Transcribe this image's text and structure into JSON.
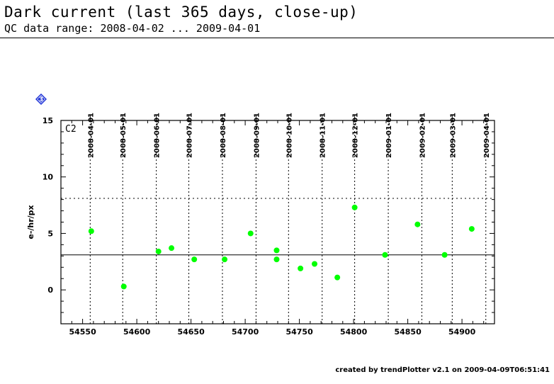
{
  "header": {
    "title": "Dark current (last 365 days, close-up)",
    "subtitle": "QC data range: 2008-04-02 ... 2009-04-01"
  },
  "footer": {
    "credit": "created by trendPlotter v2.1 on 2009-04-09T06:51:41"
  },
  "badge": {
    "label": "3",
    "color": "#1a2fd6"
  },
  "chart_data": {
    "type": "scatter",
    "title": "Dark current (last 365 days, close-up)",
    "subtitle": "QC data range: 2008-04-02 ... 2009-04-01",
    "panel_label": "C2",
    "ylabel": "e-/hr/px",
    "xlabel": "",
    "xlim": [
      54530,
      54930
    ],
    "ylim": [
      -3,
      15
    ],
    "x_ticks": [
      54550,
      54600,
      54650,
      54700,
      54750,
      54800,
      54850,
      54900
    ],
    "y_ticks": [
      0,
      5,
      10,
      15
    ],
    "date_ticks": [
      {
        "x": 54557,
        "label": "2008-04-01"
      },
      {
        "x": 54587,
        "label": "2008-05-01"
      },
      {
        "x": 54618,
        "label": "2008-06-01"
      },
      {
        "x": 54648,
        "label": "2008-07-01"
      },
      {
        "x": 54679,
        "label": "2008-08-01"
      },
      {
        "x": 54710,
        "label": "2008-09-01"
      },
      {
        "x": 54740,
        "label": "2008-10-01"
      },
      {
        "x": 54771,
        "label": "2008-11-01"
      },
      {
        "x": 54801,
        "label": "2008-12-01"
      },
      {
        "x": 54832,
        "label": "2009-01-01"
      },
      {
        "x": 54863,
        "label": "2009-02-01"
      },
      {
        "x": 54891,
        "label": "2009-03-01"
      },
      {
        "x": 54922,
        "label": "2009-04-01"
      }
    ],
    "reference_line": {
      "y": 3.1,
      "style": "solid"
    },
    "threshold_line": {
      "y": 8.1,
      "style": "dotted"
    },
    "marker_color": "#00ff00",
    "series": [
      {
        "points": [
          {
            "x": 54558,
            "y": 5.2
          },
          {
            "x": 54588,
            "y": 0.3
          },
          {
            "x": 54620,
            "y": 3.4
          },
          {
            "x": 54632,
            "y": 3.7
          },
          {
            "x": 54653,
            "y": 2.7
          },
          {
            "x": 54681,
            "y": 2.7
          },
          {
            "x": 54705,
            "y": 5.0
          },
          {
            "x": 54729,
            "y": 3.5
          },
          {
            "x": 54729,
            "y": 2.7
          },
          {
            "x": 54751,
            "y": 1.9
          },
          {
            "x": 54764,
            "y": 2.3
          },
          {
            "x": 54785,
            "y": 1.1
          },
          {
            "x": 54801,
            "y": 7.3
          },
          {
            "x": 54829,
            "y": 3.1
          },
          {
            "x": 54859,
            "y": 5.8
          },
          {
            "x": 54884,
            "y": 3.1
          },
          {
            "x": 54909,
            "y": 5.4
          }
        ]
      }
    ]
  }
}
